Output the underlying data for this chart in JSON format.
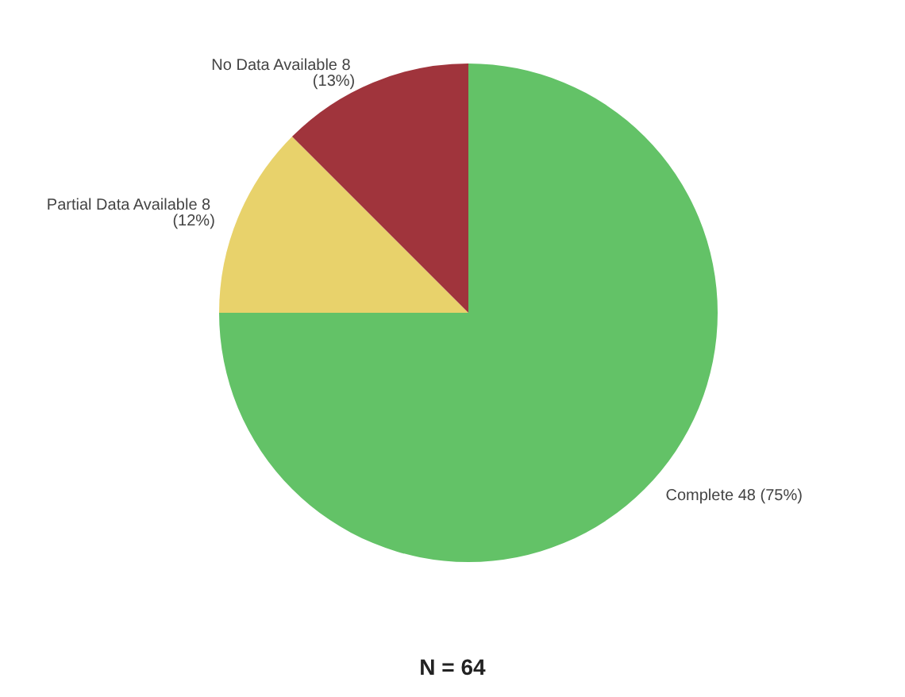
{
  "chart_data": {
    "type": "pie",
    "categories": [
      "Complete",
      "Partial Data Available",
      "No Data Available"
    ],
    "values": [
      48,
      8,
      8
    ],
    "value_labels": [
      "48 (75%)",
      "8 (12%)",
      "8 (13%)"
    ],
    "colors": [
      "#63c267",
      "#e8d26b",
      "#a0343c"
    ],
    "annotations": [
      "N = 64"
    ],
    "legend": false
  }
}
